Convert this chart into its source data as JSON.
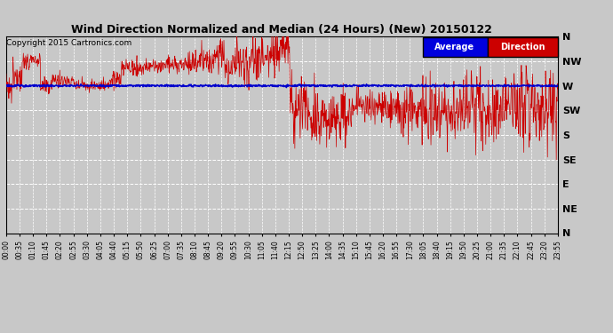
{
  "title": "Wind Direction Normalized and Median (24 Hours) (New) 20150122",
  "copyright": "Copyright 2015 Cartronics.com",
  "background_color": "#c8c8c8",
  "plot_background": "#c8c8c8",
  "ytick_labels": [
    "N",
    "NW",
    "W",
    "SW",
    "S",
    "SE",
    "E",
    "NE",
    "N"
  ],
  "ytick_values": [
    0,
    1,
    2,
    3,
    4,
    5,
    6,
    7,
    8
  ],
  "ylim": [
    0,
    8
  ],
  "legend_average_color": "#0000dd",
  "legend_direction_color": "#cc0000",
  "grid_color": "#ffffff",
  "line_color_red": "#cc0000",
  "line_color_blue": "#0000cc",
  "xtick_labels": [
    "00:00",
    "00:35",
    "01:10",
    "01:45",
    "02:20",
    "02:55",
    "03:30",
    "04:05",
    "04:40",
    "05:15",
    "05:50",
    "06:25",
    "07:00",
    "07:35",
    "08:10",
    "08:45",
    "09:20",
    "09:55",
    "10:30",
    "11:05",
    "11:40",
    "12:15",
    "12:50",
    "13:25",
    "14:00",
    "14:35",
    "15:10",
    "15:45",
    "16:20",
    "16:55",
    "17:30",
    "18:05",
    "18:40",
    "19:15",
    "19:50",
    "20:25",
    "21:00",
    "21:35",
    "22:10",
    "22:45",
    "23:20",
    "23:55"
  ]
}
